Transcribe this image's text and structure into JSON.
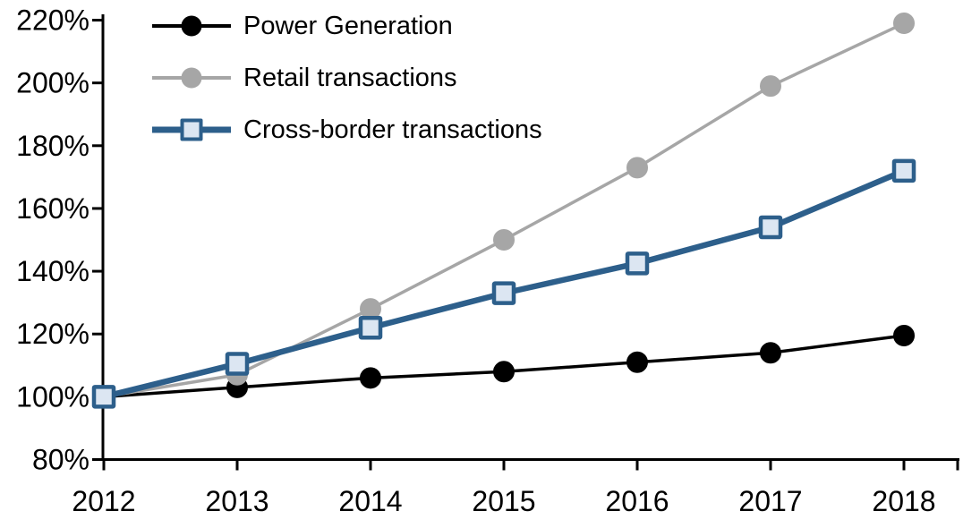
{
  "chart_data": {
    "type": "line",
    "title": "",
    "xlabel": "",
    "ylabel": "",
    "categories": [
      "2012",
      "2013",
      "2014",
      "2015",
      "2016",
      "2017",
      "2018"
    ],
    "y_axis": {
      "min": 80,
      "max": 220,
      "step": 20,
      "suffix": "%",
      "tick_labels": [
        "80%",
        "100%",
        "120%",
        "140%",
        "160%",
        "180%",
        "200%",
        "220%"
      ]
    },
    "grid": false,
    "legend_position": "top-left-inside",
    "axis_color": "#000000",
    "series": [
      {
        "name": "Power Generation",
        "marker": "circle",
        "line_color": "#000000",
        "marker_fill": "#000000",
        "marker_border": "#000000",
        "line_width": 3.5,
        "values": [
          100,
          103,
          106,
          108,
          111,
          114,
          119.5
        ]
      },
      {
        "name": "Retail transactions",
        "marker": "circle",
        "line_color": "#a6a6a6",
        "marker_fill": "#a6a6a6",
        "marker_border": "#a6a6a6",
        "line_width": 3.5,
        "values": [
          100,
          107,
          128,
          150,
          173,
          199,
          219
        ]
      },
      {
        "name": "Cross-border transactions",
        "marker": "square",
        "line_color": "#2d5f8b",
        "marker_fill": "#dce6f2",
        "marker_border": "#2d5f8b",
        "line_width": 6.5,
        "values": [
          100,
          110.5,
          122,
          133,
          142.5,
          154,
          172
        ]
      }
    ]
  }
}
